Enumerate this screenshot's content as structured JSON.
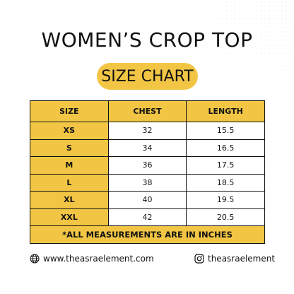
{
  "header": {
    "title": "WOMEN’S CROP TOP",
    "badge": "SIZE CHART"
  },
  "table": {
    "columns": [
      "SIZE",
      "CHEST",
      "LENGTH"
    ],
    "rows": [
      [
        "XS",
        "32",
        "15.5"
      ],
      [
        "S",
        "34",
        "16.5"
      ],
      [
        "M",
        "36",
        "17.5"
      ],
      [
        "L",
        "38",
        "18.5"
      ],
      [
        "XL",
        "40",
        "19.5"
      ],
      [
        "XXL",
        "42",
        "20.5"
      ]
    ],
    "note": "*ALL MEASUREMENTS ARE IN INCHES"
  },
  "footer": {
    "website": "www.theasraelement.com",
    "instagram": "theasraelement"
  }
}
